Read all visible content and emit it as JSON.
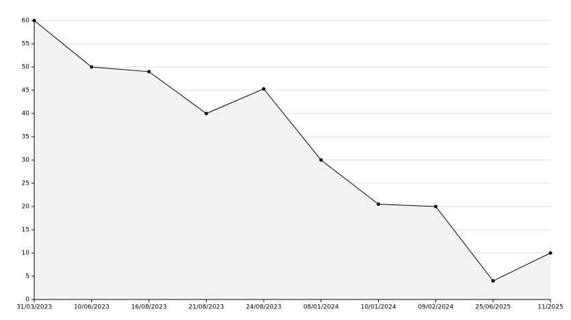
{
  "chart_data": {
    "type": "area",
    "categories": [
      "31/03/2023",
      "10/06/2023",
      "16/08/2023",
      "21/08/2023",
      "24/08/2023",
      "08/01/2024",
      "10/01/2024",
      "09/02/2024",
      "25/06/2025",
      "11/2025"
    ],
    "values": [
      60,
      50,
      49,
      40,
      45.3,
      30,
      20.5,
      20,
      4,
      10
    ],
    "color": "#000000",
    "fill": "#f2f2f2",
    "ylim": [
      0,
      60
    ],
    "yticks": [
      0,
      5,
      10,
      15,
      20,
      25,
      30,
      35,
      40,
      45,
      50,
      55,
      60
    ],
    "grid": true
  }
}
